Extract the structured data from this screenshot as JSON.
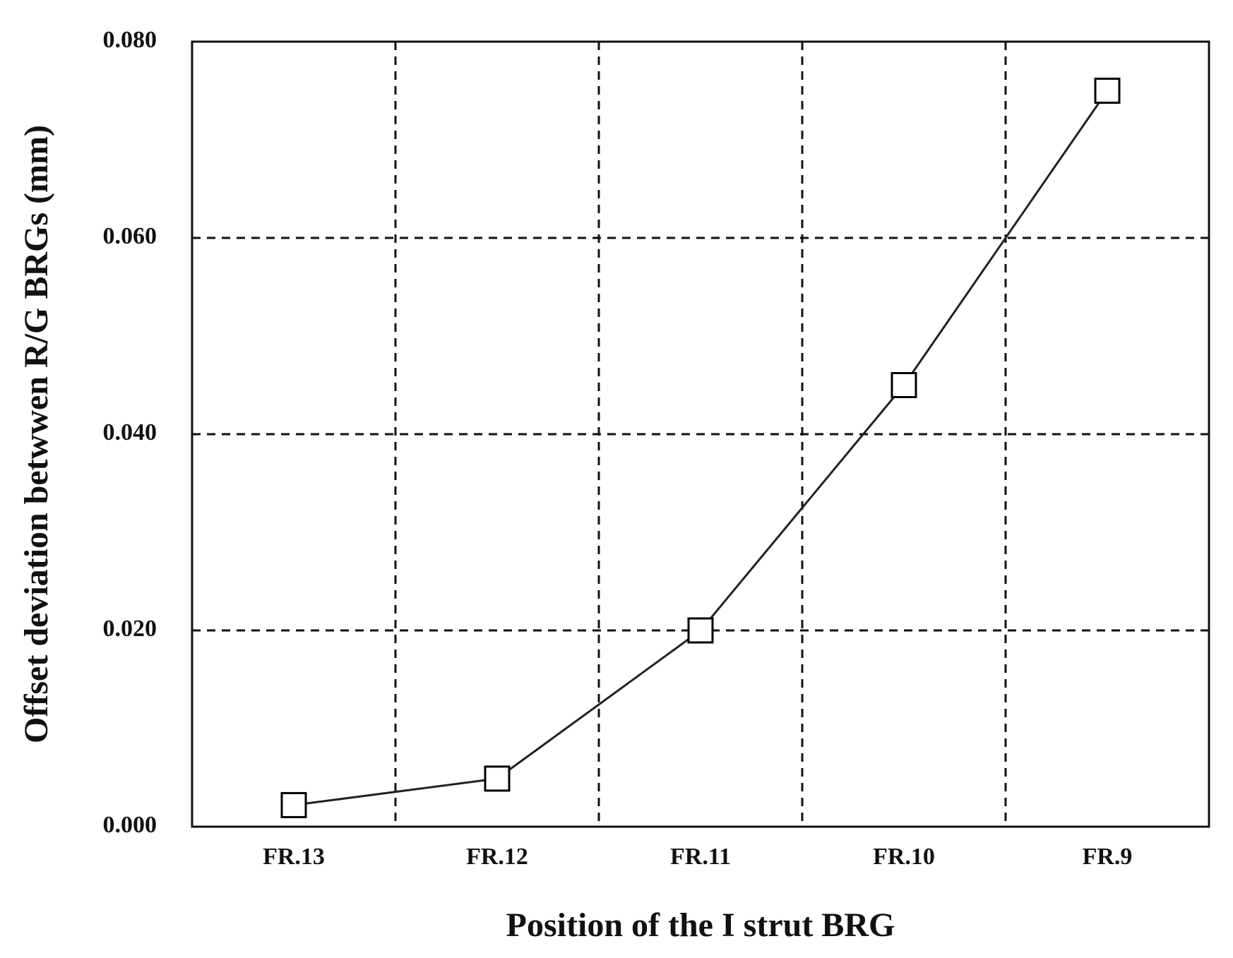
{
  "chart_data": {
    "type": "line",
    "x_label": "Position of the I strut BRG",
    "y_label": "Offset deviation betwwen R/G BRGs  (mm)",
    "categories": [
      "FR.13",
      "FR.12",
      "FR.11",
      "FR.10",
      "FR.9"
    ],
    "series": [
      {
        "name": "Offset deviation",
        "color": "#222222",
        "marker": "square",
        "values": [
          0.0022,
          0.0049,
          0.02,
          0.045,
          0.075
        ]
      }
    ],
    "ylim": [
      0,
      0.08
    ],
    "yticks": [
      {
        "value": 0,
        "label": "0.000"
      },
      {
        "value": 0.02,
        "label": "0.020"
      },
      {
        "value": 0.04,
        "label": "0.040"
      },
      {
        "value": 0.06,
        "label": "0.060"
      },
      {
        "value": 0.08,
        "label": "0.080"
      }
    ],
    "grid": true
  }
}
